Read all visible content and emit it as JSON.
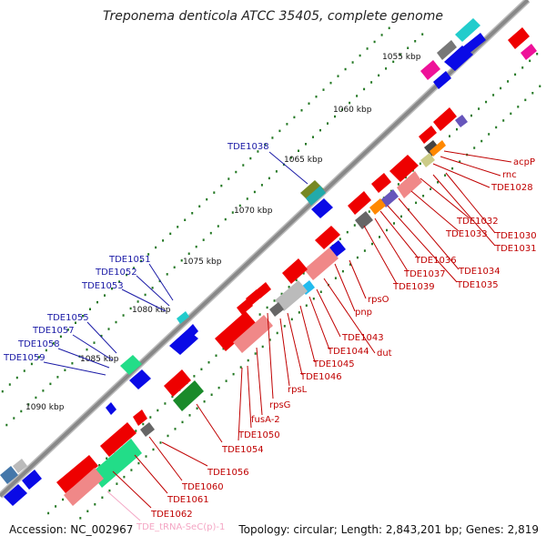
{
  "title": "Treponema denticola ATCC 35405, complete genome",
  "footer": {
    "accession": "Accession: NC_002967",
    "stats": "Topology: circular; Length: 2,843,201 bp; Genes: 2,819"
  },
  "ticks": [
    "1055 kbp",
    "1060 kbp",
    "1065 kbp",
    "1070 kbp",
    "1075 kbp",
    "1080 kbp",
    "1085 kbp",
    "1090 kbp"
  ],
  "left_genes": [
    "TDE1038",
    "TDE1051",
    "TDE1052",
    "TDE1053",
    "TDE1055",
    "TDE1057",
    "TDE1058",
    "TDE1059"
  ],
  "right_genes": [
    "acpP",
    "rnc",
    "TDE1028",
    "TDE1030",
    "TDE1031",
    "TDE1032",
    "TDE1033",
    "TDE1034",
    "TDE1035",
    "TDE1036",
    "TDE1037",
    "TDE1039",
    "rpsO",
    "pnp",
    "TDE1043",
    "dut",
    "TDE1044",
    "TDE1045",
    "TDE1046",
    "rpsL",
    "rpsG",
    "fusA-2",
    "TDE1050",
    "TDE1054",
    "TDE1056",
    "TDE1060",
    "TDE1061",
    "TDE1062"
  ],
  "rna_genes": [
    "TDE_tRNA-SeC(p)-1"
  ],
  "colors": {
    "backbone": "#888888",
    "blue": "#0a0ae6",
    "red": "#ee0000",
    "pink": "#f08888",
    "cyan": "#22cccc",
    "green": "#22dd88",
    "gray": "#777777",
    "magenta": "#ee1199",
    "orange": "#ff8800",
    "olive": "#778822",
    "purple": "#6655bb",
    "dots": "#227722",
    "leftLabel": "#1a1aa6",
    "rightLabel": "#c00000"
  }
}
